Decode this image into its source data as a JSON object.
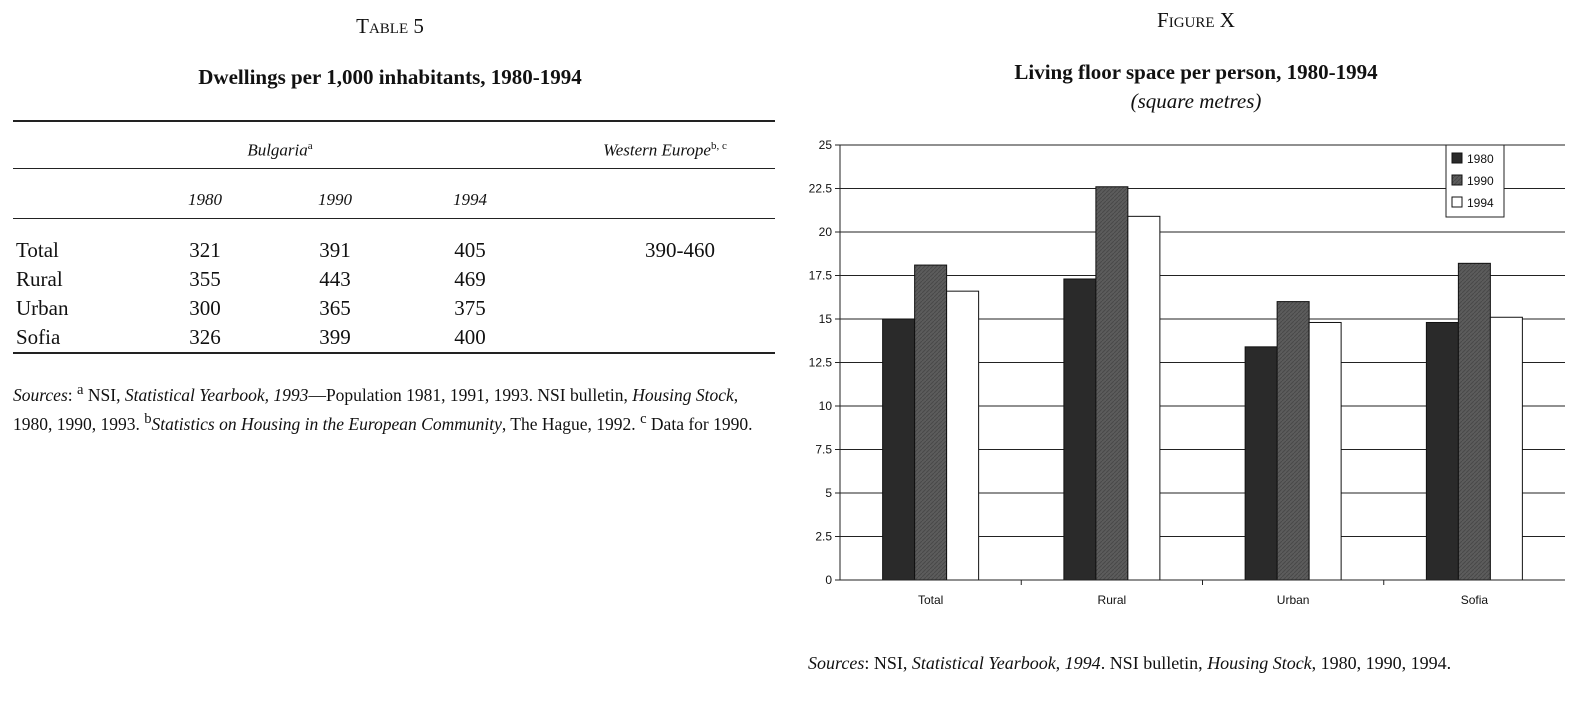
{
  "table": {
    "label": "Table 5",
    "title": "Dwellings per 1,000 inhabitants, 1980-1994",
    "group_left": "Bulgaria",
    "group_left_sup": "a",
    "group_right": "Western Europe",
    "group_right_sup": "b, c",
    "years": [
      "1980",
      "1990",
      "1994"
    ],
    "rows": [
      {
        "label": "Total",
        "v1980": "321",
        "v1990": "391",
        "v1994": "405",
        "we": "390-460"
      },
      {
        "label": "Rural",
        "v1980": "355",
        "v1990": "443",
        "v1994": "469",
        "we": ""
      },
      {
        "label": "Urban",
        "v1980": "300",
        "v1990": "365",
        "v1994": "375",
        "we": ""
      },
      {
        "label": "Sofia",
        "v1980": "326",
        "v1990": "399",
        "v1994": "400",
        "we": ""
      }
    ],
    "sources": {
      "lead": "Sources",
      "colon": ":",
      "sup_a": "a",
      "p1": " NSI, ",
      "p1_italic": "Statistical Yearbook, 1993",
      "p2": "—Population 1981, 1991, 1993. NSI bulletin, ",
      "p2_italic": "Housing Stock",
      "p3": ", 1980, 1990, 1993. ",
      "sup_b": "b",
      "p3_italic": "Statistics on Housing in the European Community",
      "p4": ", The Hague, 1992. ",
      "sup_c": "c",
      "p5": " Data for 1990."
    }
  },
  "figure": {
    "label": "Figure X",
    "title": "Living floor space per person, 1980-1994",
    "subtitle": "(square metres)",
    "sources": {
      "lead": "Sources",
      "p1": ": NSI, ",
      "p1_italic": "Statistical Yearbook, 1994",
      "p2": ". NSI bulletin, ",
      "p2_italic": "Housing Stock",
      "p3": ", 1980, 1990, 1994."
    }
  },
  "chart_data": {
    "type": "bar",
    "title": "Living floor space per person, 1980-1994",
    "subtitle": "(square metres)",
    "xlabel": "",
    "ylabel": "",
    "categories": [
      "Total",
      "Rural",
      "Urban",
      "Sofia"
    ],
    "series": [
      {
        "name": "1980",
        "color": "#2a2a2a",
        "values": [
          15.0,
          17.3,
          13.4,
          14.8
        ]
      },
      {
        "name": "1990",
        "color": "#5c5c5c",
        "values": [
          18.1,
          22.6,
          16.0,
          18.2
        ]
      },
      {
        "name": "1994",
        "color": "#ffffff",
        "values": [
          16.6,
          20.9,
          14.8,
          15.1
        ]
      }
    ],
    "ylim": [
      0,
      25
    ],
    "yticks": [
      "0",
      "2.5",
      "5",
      "7.5",
      "10",
      "12.5",
      "15",
      "17.5",
      "20",
      "22.5",
      "25"
    ],
    "grid": true,
    "legend": "top-right"
  }
}
